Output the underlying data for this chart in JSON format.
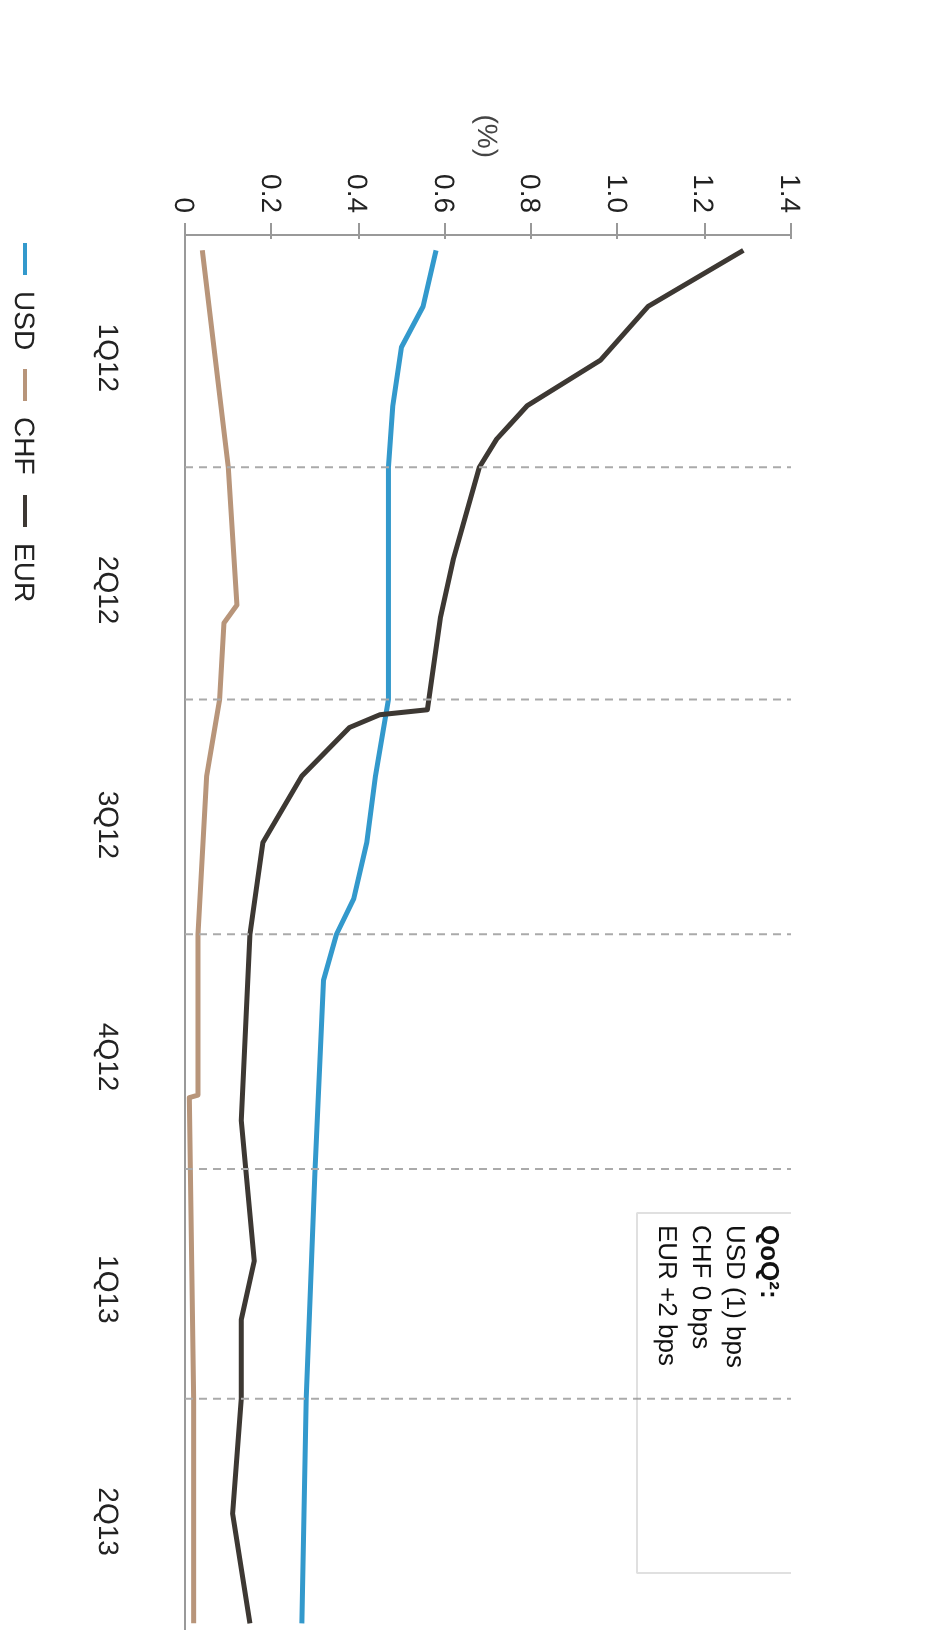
{
  "chart_data": {
    "type": "line",
    "orientation": "horizontal",
    "title": "(%)",
    "xlim": [
      0,
      1.4
    ],
    "xticks": [
      0,
      {
        "value": 0.2,
        "label": "0.2"
      },
      {
        "value": 0.4,
        "label": "0.4"
      },
      {
        "value": 0.6,
        "label": "0.6"
      },
      {
        "value": 0.8,
        "label": "0.8"
      },
      {
        "value": 1.0,
        "label": "1.0"
      },
      {
        "value": 1.2,
        "label": "1.2"
      },
      {
        "value": 1.4,
        "label": "1.4"
      }
    ],
    "ylim": [
      "2013-07-01",
      "2012-01-01"
    ],
    "yticks": [
      {
        "value": "2012-02-15",
        "label": "1Q12"
      },
      {
        "value": "2012-05-16",
        "label": "2Q12"
      },
      {
        "value": "2012-08-16",
        "label": "3Q12"
      },
      {
        "value": "2012-11-15",
        "label": "4Q12"
      },
      {
        "value": "2013-02-14",
        "label": "1Q13"
      },
      {
        "value": "2013-05-16",
        "label": "2Q13"
      }
    ],
    "series": [
      {
        "name": "USD",
        "color": "#3399cc",
        "values": [
          0.58,
          0.55,
          0.5,
          0.48,
          0.47,
          0.47,
          0.44,
          0.42,
          0.39,
          0.35,
          0.32,
          0.3,
          0.28,
          0.27
        ],
        "x": [
          "2012-01-07",
          "2012-01-29",
          "2012-02-14",
          "2012-03-08",
          "2012-04-01",
          "2012-07-01",
          "2012-07-31",
          "2012-08-26",
          "2012-09-17",
          "2012-10-01",
          "2012-10-19",
          "2013-01-03",
          "2013-04-01",
          "2013-06-28"
        ]
      },
      {
        "name": "CHF",
        "color": "#b8957a",
        "values": [
          0.04,
          0.1,
          0.12,
          0.09,
          0.08,
          0.05,
          0.03,
          0.03,
          0.01,
          0.02,
          0.02
        ],
        "x": [
          "2012-01-07",
          "2012-04-01",
          "2012-05-25",
          "2012-06-01",
          "2012-07-01",
          "2012-07-31",
          "2012-10-01",
          "2012-12-03",
          "2012-12-04",
          "2013-04-01",
          "2013-06-28"
        ]
      },
      {
        "name": "EUR",
        "color": "#3d3833",
        "values": [
          1.29,
          1.07,
          0.96,
          0.79,
          0.72,
          0.68,
          0.62,
          0.59,
          0.56,
          0.45,
          0.38,
          0.27,
          0.18,
          0.15,
          0.13,
          0.16,
          0.13,
          0.13,
          0.11,
          0.15
        ],
        "x": [
          "2012-01-07",
          "2012-01-29",
          "2012-02-19",
          "2012-03-08",
          "2012-03-21",
          "2012-04-01",
          "2012-05-07",
          "2012-05-30",
          "2012-07-05",
          "2012-07-07",
          "2012-07-12",
          "2012-07-31",
          "2012-08-26",
          "2012-10-01",
          "2012-12-13",
          "2013-02-06",
          "2013-03-01",
          "2013-04-01",
          "2013-05-16",
          "2013-06-28"
        ]
      }
    ],
    "ref_lines": [
      {
        "axis": "y",
        "value": "2012-04-01",
        "line_style": "dashed",
        "color": "#aaaaaa"
      },
      {
        "axis": "y",
        "value": "2012-07-01",
        "line_style": "dashed",
        "color": "#aaaaaa"
      },
      {
        "axis": "y",
        "value": "2012-10-01",
        "line_style": "dashed",
        "color": "#aaaaaa"
      },
      {
        "axis": "y",
        "value": "2013-01-01",
        "line_style": "dashed",
        "color": "#aaaaaa"
      },
      {
        "axis": "y",
        "value": "2013-04-01",
        "line_style": "dashed",
        "color": "#aaaaaa"
      }
    ],
    "annotations": [
      "QoQ²:",
      "USD (1) bps",
      "CHF 0 bps",
      "EUR +2 bps"
    ],
    "grid": false,
    "legend": "left",
    "marker": "none",
    "line_style": "solid"
  }
}
